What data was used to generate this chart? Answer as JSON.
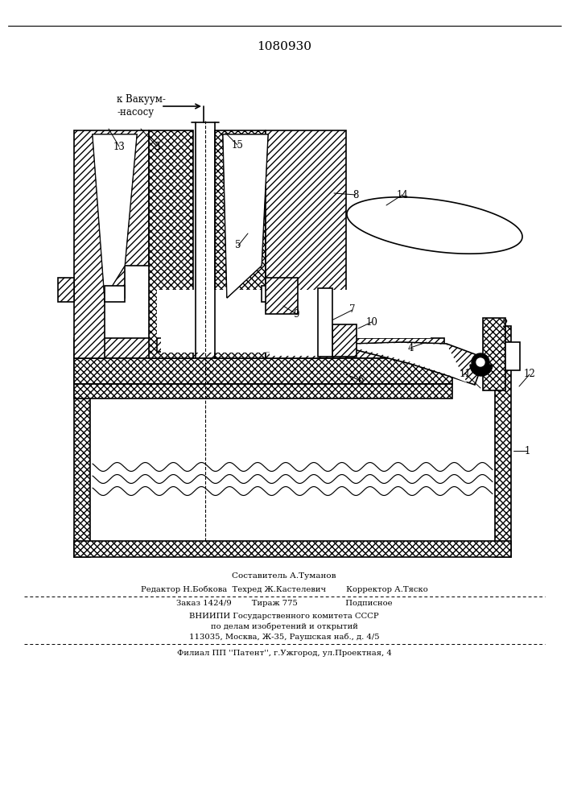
{
  "patent_number": "1080930",
  "bg": "#ffffff",
  "lc": "#000000",
  "footer_line1": "Составитель А.Туманов",
  "footer_line2": "Редактор Н.Бобкова  Техред Ж.Кастелевич        Корректор А.Тяско",
  "footer_line3": "Заказ 1424/9        Тираж 775                   Подписное",
  "footer_line4": "ВНИИПИ Государственного комитета СССР",
  "footer_line5": "по делам изобретений и открытий",
  "footer_line6": "113035, Москва, Ж-35, Раушская наб., д. 4/5",
  "footer_line7": "Филиал ПП ''Патент'', г.Ужгород, ул.Проектная, 4",
  "vacuum_text1": "к Вакуум-",
  "vacuum_text2": "-насосу"
}
